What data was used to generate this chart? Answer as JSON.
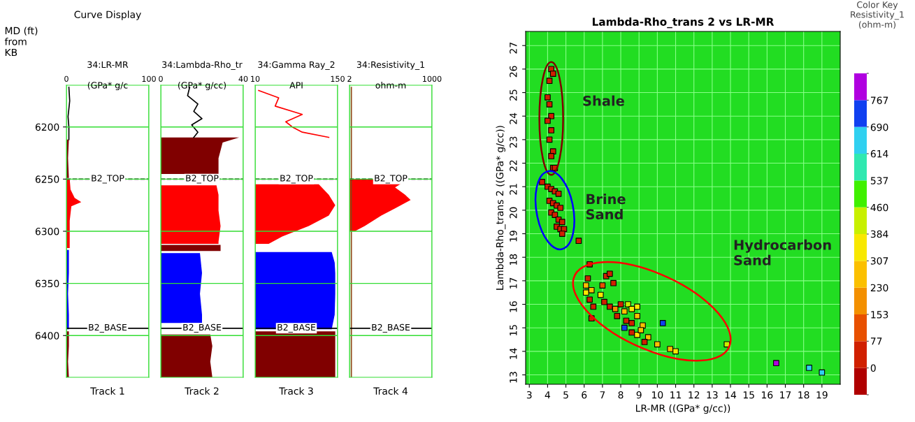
{
  "chart_data": [
    {
      "type": "area",
      "orientation": "horizontal",
      "title": "Curve Display",
      "subtitle": "34:LR-MR",
      "xlabel": "(GPa* g/c",
      "ylabel": "MD (ft)\nfrom\nKB",
      "annotations": [
        "Track 1"
      ],
      "xlim": [
        0,
        100
      ],
      "xticks": [
        0,
        100
      ],
      "ylim": [
        6440,
        6160
      ],
      "yticks": [
        6200,
        6250,
        6300,
        6350,
        6400
      ],
      "grid": true,
      "ref_lines": [
        {
          "axis": "y",
          "value": 6250,
          "label": "B2_TOP",
          "color": "#000000",
          "line_style": "dashed"
        },
        {
          "axis": "y",
          "value": 6393,
          "label": "B2_BASE",
          "color": "#000000",
          "line_style": "solid"
        }
      ],
      "series": [
        {
          "type": "line",
          "color": "#000000",
          "x": [
            6162,
            6175,
            6190,
            6200,
            6212
          ],
          "values": [
            3,
            4,
            2,
            3,
            3
          ]
        },
        {
          "color": "#800000",
          "x": [
            6212,
            6230,
            6249
          ],
          "values": [
            3,
            2,
            3
          ]
        },
        {
          "color": "#ff0000",
          "x": [
            6250,
            6260,
            6268,
            6272,
            6276,
            6290,
            6316
          ],
          "values": [
            4,
            5,
            10,
            18,
            6,
            4,
            4
          ]
        },
        {
          "color": "#0000ff",
          "x": [
            6318,
            6340,
            6360,
            6380,
            6394
          ],
          "values": [
            3,
            3,
            2,
            3,
            3
          ]
        },
        {
          "color": "#800000",
          "x": [
            6396,
            6410,
            6425,
            6440
          ],
          "values": [
            3,
            3,
            2,
            3
          ]
        }
      ]
    },
    {
      "type": "area",
      "orientation": "horizontal",
      "subtitle": "34:Lambda-Rho_tr",
      "xlabel": "(GPa* g/cc)",
      "annotations": [
        "Track 2"
      ],
      "tick_labels": "x",
      "xlim": [
        0,
        40
      ],
      "xticks": [
        0,
        40
      ],
      "ylim": [
        6440,
        6160
      ],
      "yticks": [
        6200,
        6250,
        6300,
        6350,
        6400
      ],
      "grid": true,
      "ref_lines": [
        {
          "axis": "y",
          "value": 6250,
          "label": "B2_TOP",
          "color": "#000000",
          "line_style": "dashed"
        },
        {
          "axis": "y",
          "value": 6393,
          "label": "B2_BASE",
          "color": "#000000",
          "line_style": "solid"
        }
      ],
      "series": [
        {
          "type": "line",
          "color": "#000000",
          "x": [
            6162,
            6170,
            6178,
            6185,
            6192,
            6198,
            6205,
            6210
          ],
          "values": [
            14,
            13,
            18,
            16,
            20,
            15,
            18,
            16
          ]
        },
        {
          "color": "#800000",
          "x": [
            6210,
            6215,
            6230,
            6240,
            6245
          ],
          "values": [
            38,
            30,
            28,
            28,
            28
          ]
        },
        {
          "color": "#ff0000",
          "x": [
            6256,
            6265,
            6280,
            6295,
            6310,
            6312
          ],
          "values": [
            27,
            28,
            28,
            29,
            28,
            28
          ]
        },
        {
          "color": "#800000",
          "x": [
            6313,
            6319
          ],
          "values": [
            29,
            29
          ]
        },
        {
          "color": "#0000ff",
          "x": [
            6321,
            6340,
            6360,
            6380,
            6388
          ],
          "values": [
            19,
            20,
            19,
            20,
            20
          ]
        },
        {
          "color": "#800000",
          "x": [
            6399,
            6410,
            6425,
            6440
          ],
          "values": [
            24,
            25,
            24,
            25
          ]
        }
      ]
    },
    {
      "type": "area",
      "orientation": "horizontal",
      "subtitle": "34:Gamma Ray_2",
      "xlabel": "API",
      "annotations": [
        "Track 3"
      ],
      "tick_labels": "x",
      "xlim": [
        10,
        150
      ],
      "xticks": [
        10,
        150
      ],
      "ylim": [
        6440,
        6160
      ],
      "yticks": [
        6200,
        6250,
        6300,
        6350,
        6400
      ],
      "grid": true,
      "ref_lines": [
        {
          "axis": "y",
          "value": 6250,
          "label": "B2_TOP",
          "color": "#000000",
          "line_style": "dashed"
        },
        {
          "axis": "y",
          "value": 6393,
          "label": "B2_BASE",
          "color": "#000000",
          "line_style": "solid"
        }
      ],
      "series": [
        {
          "type": "line",
          "color": "#ff0000",
          "x": [
            6165,
            6172,
            6180,
            6188,
            6195,
            6200,
            6205,
            6210
          ],
          "values": [
            16,
            50,
            44,
            90,
            62,
            73,
            90,
            135
          ]
        },
        {
          "color": "#ff0000",
          "x": [
            6255,
            6265,
            6275,
            6285,
            6295,
            6305,
            6312
          ],
          "values": [
            118,
            135,
            146,
            135,
            101,
            56,
            33
          ]
        },
        {
          "color": "#0000ff",
          "x": [
            6320,
            6330,
            6340,
            6360,
            6380,
            6394
          ],
          "values": [
            140,
            145,
            146,
            146,
            145,
            140
          ]
        },
        {
          "color": "#800000",
          "x": [
            6396,
            6410,
            6425,
            6440
          ],
          "values": [
            146,
            146,
            146,
            146
          ]
        }
      ]
    },
    {
      "type": "area",
      "orientation": "horizontal",
      "subtitle": "34:Resistivity_1",
      "xlabel": "ohm-m",
      "annotations": [
        "Track 4"
      ],
      "tick_labels": "x",
      "log": "x",
      "xlim": [
        2,
        1000
      ],
      "xticks": [
        2,
        1000
      ],
      "ylim": [
        6440,
        6160
      ],
      "yticks": [
        6200,
        6250,
        6300,
        6350,
        6400
      ],
      "grid": true,
      "ref_lines": [
        {
          "axis": "y",
          "value": 6250,
          "label": "B2_TOP",
          "color": "#000000",
          "line_style": "dashed"
        },
        {
          "axis": "y",
          "value": 6393,
          "label": "B2_BASE",
          "color": "#000000",
          "line_style": "solid"
        }
      ],
      "series": [
        {
          "type": "line",
          "color": "#8b4513",
          "x": [
            6162,
            6440
          ],
          "values": [
            2.3,
            2.3
          ]
        },
        {
          "color": "#ff0000",
          "x": [
            6250,
            6258,
            6265,
            6270,
            6278,
            6285,
            6295,
            6300
          ],
          "values": [
            170,
            62,
            132,
            200,
            62,
            22,
            6.3,
            3
          ]
        }
      ]
    },
    {
      "type": "scatter",
      "title": "Lambda-Rho_trans 2 vs LR-MR",
      "xlabel": "LR-MR ((GPa* g/cc))",
      "ylabel": "Lambda-Rho_trans 2 ((GPa* g/cc))",
      "clabel": "Color Key\nResistivity_1\n(ohm-m)",
      "xlim": [
        2.8,
        20
      ],
      "xticks": [
        3,
        4,
        5,
        6,
        7,
        8,
        9,
        10,
        11,
        12,
        13,
        14,
        15,
        16,
        17,
        18,
        19
      ],
      "ylim": [
        12.6,
        27.6
      ],
      "yticks": [
        13,
        14,
        15,
        16,
        17,
        18,
        19,
        20,
        21,
        22,
        23,
        24,
        25,
        26,
        27
      ],
      "clim": [
        -77,
        844
      ],
      "cticks": [
        0,
        77,
        153,
        230,
        307,
        384,
        460,
        537,
        614,
        690,
        767
      ],
      "grid": true,
      "marker": "square",
      "annotations": [
        "Shale",
        "Brine\nSand",
        "Hydrocarbon\nSand"
      ],
      "x": [
        4.2,
        4.3,
        4.1,
        4.0,
        4.1,
        4.2,
        4.0,
        4.2,
        4.1,
        4.3,
        4.2,
        4.3,
        4.4,
        3.7,
        4.0,
        4.2,
        4.4,
        4.6,
        4.1,
        4.3,
        4.5,
        4.7,
        4.2,
        4.4,
        4.6,
        4.8,
        4.5,
        4.7,
        4.9,
        4.8,
        5.7,
        6.3,
        6.2,
        6.1,
        6.4,
        6.1,
        6.3,
        6.5,
        6.4,
        7.0,
        7.2,
        7.4,
        7.6,
        6.9,
        7.1,
        7.4,
        7.7,
        8.0,
        8.2,
        7.8,
        8.4,
        8.6,
        8.9,
        8.3,
        8.6,
        8.9,
        8.2,
        8.6,
        8.9,
        9.2,
        9.1,
        9.5,
        9.3,
        10.0,
        10.7,
        11.0,
        10.3,
        13.8,
        16.5,
        18.3,
        19.0
      ],
      "values": [
        26.0,
        25.8,
        25.5,
        24.8,
        24.5,
        24.0,
        23.8,
        23.4,
        23.0,
        22.5,
        22.3,
        21.8,
        21.8,
        21.2,
        21.0,
        20.9,
        20.8,
        20.7,
        20.4,
        20.3,
        20.2,
        20.1,
        19.9,
        19.8,
        19.6,
        19.5,
        19.3,
        19.2,
        19.2,
        19.0,
        18.7,
        17.7,
        17.1,
        16.8,
        16.6,
        16.5,
        16.2,
        15.9,
        15.4,
        16.8,
        17.2,
        17.3,
        16.9,
        16.4,
        16.1,
        15.9,
        15.8,
        16.0,
        15.7,
        15.5,
        16.0,
        15.8,
        15.9,
        15.3,
        15.2,
        15.5,
        15.0,
        14.8,
        14.7,
        15.1,
        14.9,
        14.6,
        14.4,
        14.3,
        14.1,
        14.0,
        15.2,
        14.3,
        13.5,
        13.3,
        13.1
      ],
      "cvalues": [
        40,
        40,
        40,
        40,
        40,
        40,
        40,
        40,
        40,
        40,
        40,
        40,
        40,
        40,
        40,
        40,
        40,
        40,
        40,
        40,
        40,
        40,
        40,
        40,
        40,
        40,
        40,
        40,
        40,
        40,
        40,
        40,
        40,
        300,
        230,
        330,
        40,
        40,
        40,
        100,
        40,
        40,
        40,
        380,
        40,
        40,
        200,
        40,
        230,
        40,
        450,
        350,
        320,
        40,
        40,
        250,
        700,
        40,
        330,
        300,
        270,
        250,
        40,
        230,
        300,
        330,
        720,
        400,
        800,
        650,
        650
      ]
    }
  ]
}
